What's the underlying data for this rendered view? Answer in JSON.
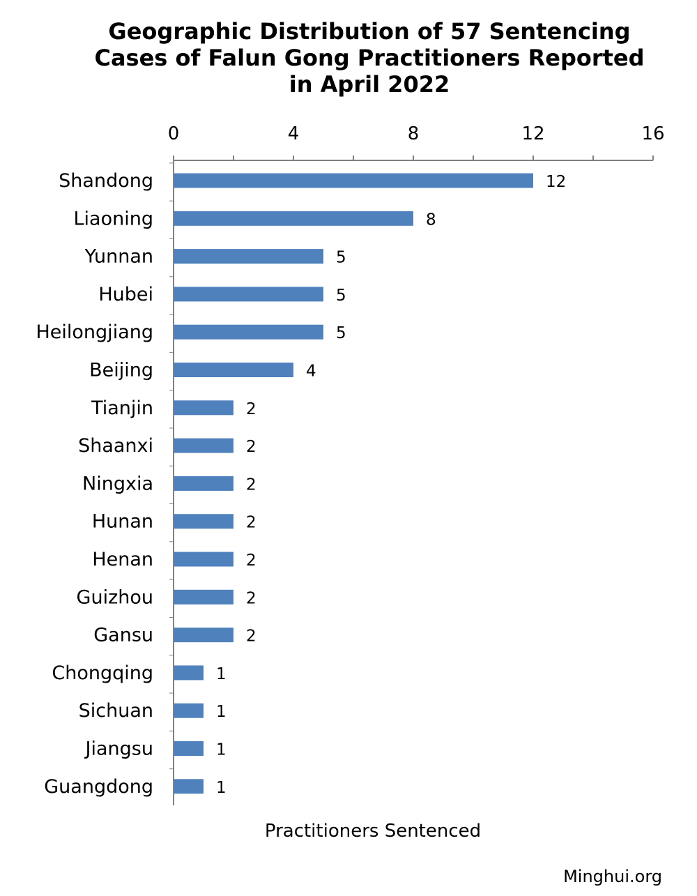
{
  "chart_data": {
    "type": "bar",
    "orientation": "horizontal",
    "title_lines": [
      "Geographic Distribution of 57 Sentencing",
      "Cases of Falun Gong Practitioners Reported",
      "in April 2022"
    ],
    "xlabel": "Practitioners Sentenced",
    "ylabel": "",
    "xlim": [
      0,
      16
    ],
    "x_ticks": [
      0,
      4,
      8,
      12,
      16
    ],
    "x_axis_position": "top",
    "grid": false,
    "legend": "none",
    "bar_color": "#4F81BD",
    "categories": [
      "Shandong",
      "Liaoning",
      "Yunnan",
      "Hubei",
      "Heilongjiang",
      "Beijing",
      "Tianjin",
      "Shaanxi",
      "Ningxia",
      "Hunan",
      "Henan",
      "Guizhou",
      "Gansu",
      "Chongqing",
      "Sichuan",
      "Jiangsu",
      "Guangdong"
    ],
    "values": [
      12,
      8,
      5,
      5,
      5,
      4,
      2,
      2,
      2,
      2,
      2,
      2,
      2,
      1,
      1,
      1,
      1
    ]
  },
  "source": "Minghui.org"
}
